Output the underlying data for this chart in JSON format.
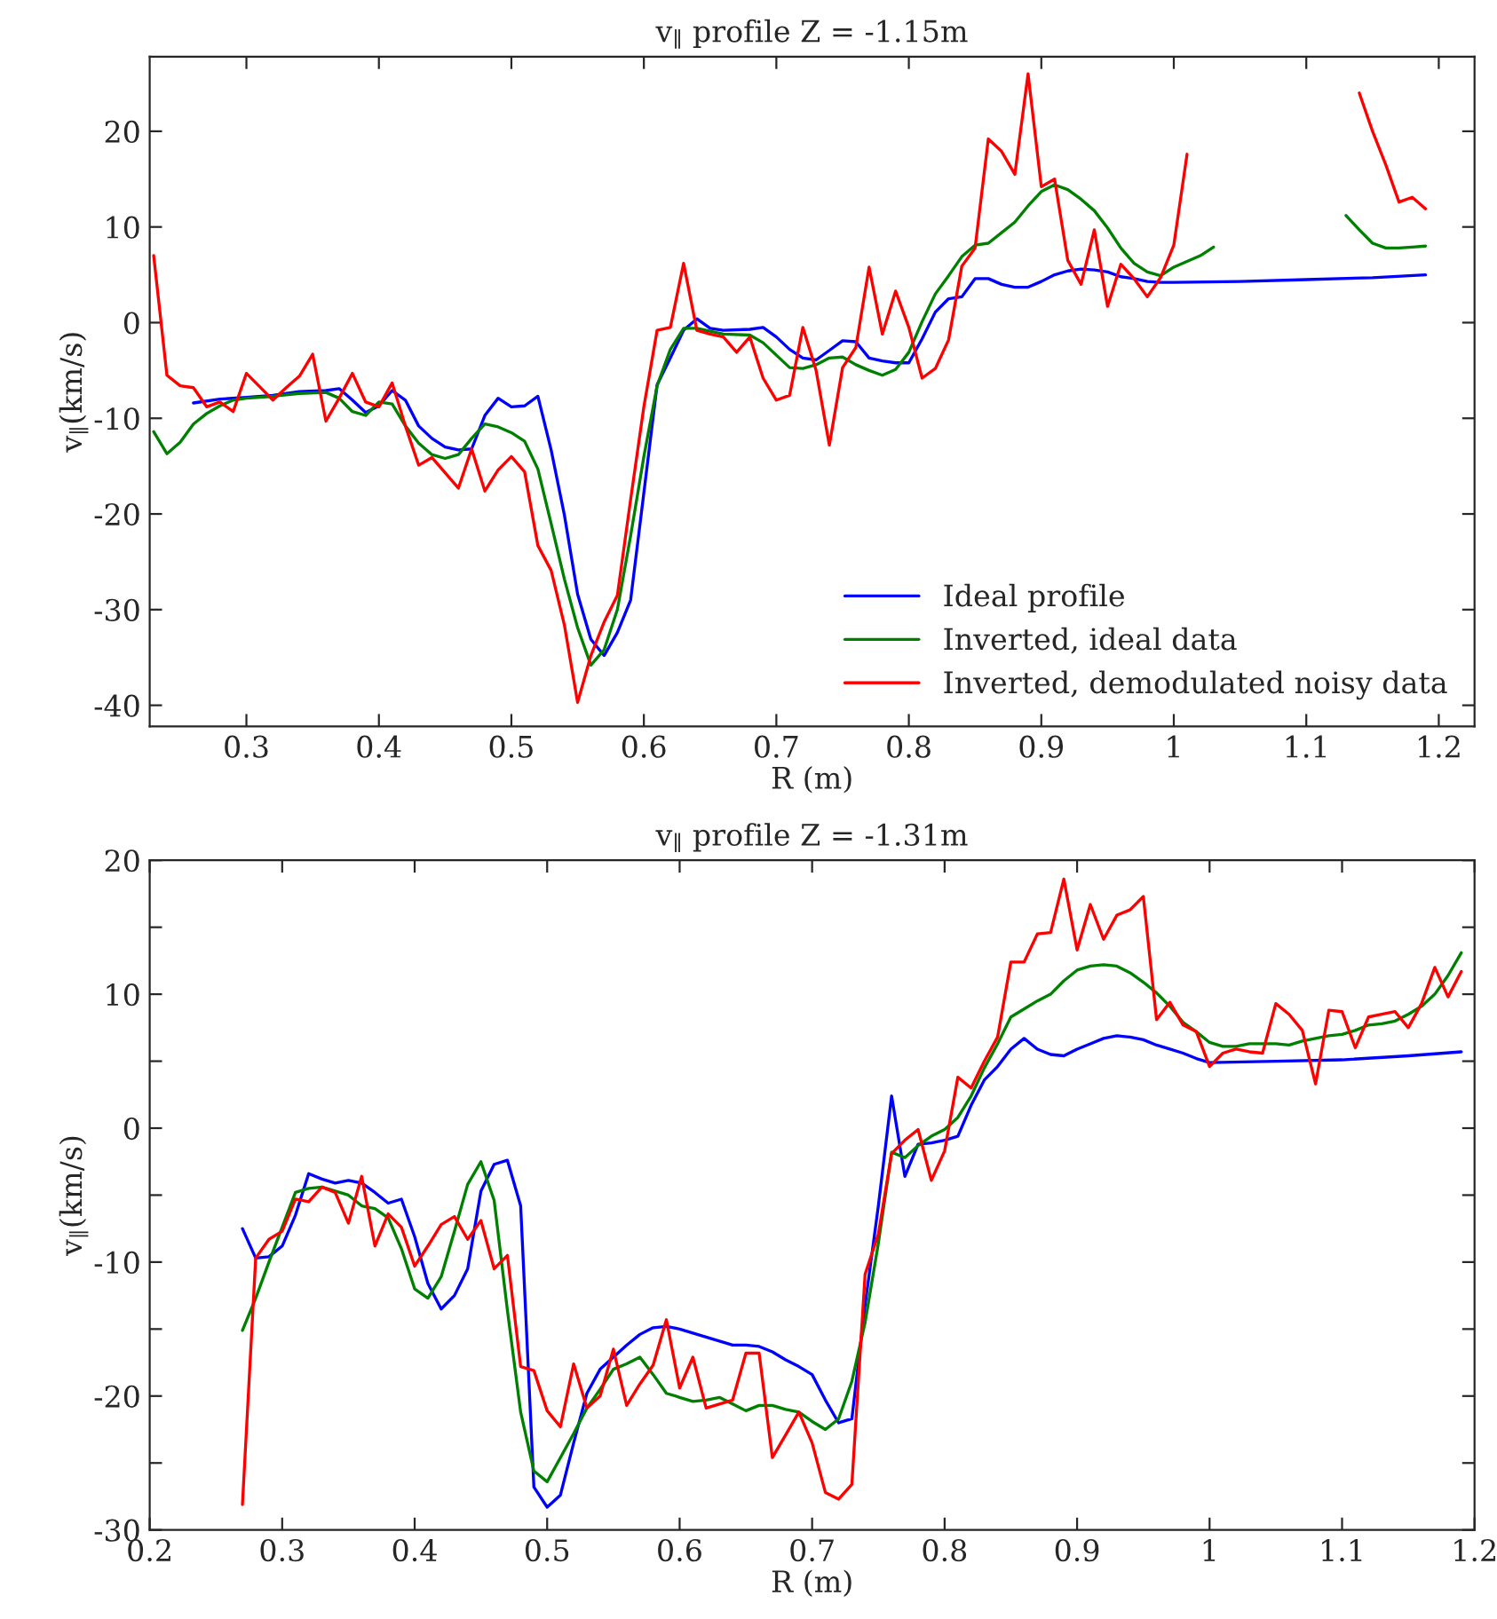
{
  "chart_data": [
    {
      "type": "line",
      "title": "v$_{∥}$ profile Z = -1.15m",
      "xlabel": "R (m)",
      "ylabel": "v$_{∥}$(km/s)",
      "xlim": [
        0.227,
        1.227
      ],
      "xticks": [
        0.3,
        0.4,
        0.5,
        0.6,
        0.7,
        0.8,
        0.9,
        1,
        1.1,
        1.2
      ],
      "ylim": [
        -42.2,
        27.8
      ],
      "yticks": [
        -40,
        -30,
        -20,
        -10,
        0,
        10,
        20
      ],
      "grid": false,
      "legend": "bottom right",
      "series": [
        {
          "name": "Ideal profile",
          "color": "#0000ff",
          "x": [
            0.26,
            0.28,
            0.3,
            0.32,
            0.34,
            0.36,
            0.37,
            0.38,
            0.39,
            0.4,
            0.41,
            0.42,
            0.43,
            0.44,
            0.45,
            0.46,
            0.47,
            0.48,
            0.49,
            0.5,
            0.51,
            0.52,
            0.53,
            0.54,
            0.55,
            0.56,
            0.57,
            0.58,
            0.59,
            0.6,
            0.61,
            0.62,
            0.63,
            0.64,
            0.65,
            0.66,
            0.68,
            0.69,
            0.7,
            0.71,
            0.72,
            0.73,
            0.74,
            0.75,
            0.76,
            0.77,
            0.78,
            0.79,
            0.8,
            0.81,
            0.82,
            0.83,
            0.84,
            0.85,
            0.86,
            0.87,
            0.88,
            0.89,
            0.9,
            0.91,
            0.92,
            0.93,
            0.94,
            0.95,
            0.96,
            0.97,
            0.98,
            0.99,
            1.0,
            1.05,
            1.1,
            1.15,
            1.19
          ],
          "values": [
            -8.4,
            -8.0,
            -7.8,
            -7.6,
            -7.2,
            -7.1,
            -6.9,
            -8.1,
            -9.4,
            -8.7,
            -7.1,
            -8.1,
            -10.8,
            -12.1,
            -13.0,
            -13.3,
            -13.2,
            -9.7,
            -7.9,
            -8.8,
            -8.7,
            -7.7,
            -13.3,
            -20.1,
            -28.4,
            -33.1,
            -34.8,
            -32.4,
            -29.0,
            -17.8,
            -6.5,
            -3.7,
            -0.8,
            0.4,
            -0.6,
            -0.8,
            -0.7,
            -0.5,
            -1.5,
            -2.8,
            -3.7,
            -3.9,
            -2.9,
            -1.9,
            -2.0,
            -3.7,
            -4.0,
            -4.2,
            -4.2,
            -1.7,
            1.1,
            2.5,
            2.7,
            4.6,
            4.6,
            4.0,
            3.7,
            3.7,
            4.3,
            5.0,
            5.4,
            5.6,
            5.5,
            5.3,
            4.8,
            4.6,
            4.3,
            4.2,
            4.2,
            4.3,
            4.5,
            4.7,
            5.0
          ]
        },
        {
          "name": "Inverted, ideal data",
          "color": "#008000",
          "x": [
            0.23,
            0.24,
            0.25,
            0.26,
            0.27,
            0.28,
            0.29,
            0.3,
            0.32,
            0.34,
            0.36,
            0.37,
            0.38,
            0.39,
            0.4,
            0.41,
            0.42,
            0.43,
            0.44,
            0.45,
            0.46,
            0.47,
            0.48,
            0.49,
            0.5,
            0.51,
            0.52,
            0.53,
            0.54,
            0.55,
            0.56,
            0.57,
            0.58,
            0.59,
            0.6,
            0.61,
            0.62,
            0.63,
            0.64,
            0.66,
            0.68,
            0.69,
            0.7,
            0.71,
            0.72,
            0.73,
            0.74,
            0.75,
            0.76,
            0.77,
            0.78,
            0.79,
            0.8,
            0.81,
            0.82,
            0.83,
            0.84,
            0.85,
            0.86,
            0.87,
            0.88,
            0.89,
            0.9,
            0.91,
            0.92,
            0.93,
            0.94,
            0.95,
            0.96,
            0.97,
            0.98,
            0.99,
            1.0,
            1.01,
            1.02,
            1.03,
            1.08,
            1.13,
            1.14,
            1.15,
            1.16,
            1.17,
            1.18,
            1.19
          ],
          "values": [
            -11.4,
            -13.7,
            -12.5,
            -10.6,
            -9.5,
            -8.7,
            -8.1,
            -7.9,
            -7.7,
            -7.4,
            -7.3,
            -7.9,
            -9.3,
            -9.7,
            -8.3,
            -8.5,
            -10.8,
            -12.6,
            -13.8,
            -14.2,
            -13.8,
            -12.1,
            -10.6,
            -10.9,
            -11.5,
            -12.4,
            -15.3,
            -21.0,
            -26.8,
            -31.9,
            -35.8,
            -34.2,
            -30.0,
            -22.3,
            -14.0,
            -6.6,
            -2.8,
            -0.6,
            -0.6,
            -1.2,
            -1.3,
            -2.1,
            -3.4,
            -4.7,
            -4.8,
            -4.4,
            -3.7,
            -3.6,
            -4.4,
            -5.0,
            -5.5,
            -4.9,
            -3.1,
            0.1,
            3.0,
            4.9,
            6.9,
            8.1,
            8.3,
            9.4,
            10.5,
            12.2,
            13.7,
            14.4,
            13.9,
            12.9,
            11.7,
            9.9,
            7.8,
            6.2,
            5.3,
            4.9,
            5.8,
            6.4,
            7.0,
            7.9,
            null,
            11.2,
            9.7,
            8.3,
            7.8,
            7.8,
            7.9,
            8.0
          ]
        },
        {
          "name": "Inverted, demodulated noisy data",
          "color": "#ff0000",
          "x": [
            0.23,
            0.24,
            0.25,
            0.26,
            0.27,
            0.28,
            0.29,
            0.3,
            0.31,
            0.32,
            0.33,
            0.34,
            0.35,
            0.36,
            0.37,
            0.38,
            0.39,
            0.4,
            0.41,
            0.42,
            0.43,
            0.44,
            0.45,
            0.46,
            0.47,
            0.48,
            0.49,
            0.5,
            0.51,
            0.52,
            0.53,
            0.54,
            0.55,
            0.56,
            0.57,
            0.58,
            0.59,
            0.6,
            0.61,
            0.62,
            0.63,
            0.64,
            0.65,
            0.66,
            0.67,
            0.68,
            0.69,
            0.7,
            0.71,
            0.72,
            0.73,
            0.74,
            0.75,
            0.76,
            0.77,
            0.78,
            0.79,
            0.8,
            0.81,
            0.82,
            0.83,
            0.84,
            0.85,
            0.86,
            0.87,
            0.88,
            0.89,
            0.9,
            0.91,
            0.92,
            0.93,
            0.94,
            0.95,
            0.96,
            0.97,
            0.98,
            0.99,
            1.0,
            1.01,
            1.08,
            1.14,
            1.15,
            1.16,
            1.17,
            1.18,
            1.19
          ],
          "values": [
            7.0,
            -5.5,
            -6.6,
            -6.8,
            -8.8,
            -8.3,
            -9.3,
            -5.3,
            -6.7,
            -8.1,
            -6.8,
            -5.6,
            -3.3,
            -10.3,
            -7.9,
            -5.3,
            -8.3,
            -8.8,
            -6.3,
            -10.8,
            -14.9,
            -14.1,
            -15.7,
            -17.3,
            -13.2,
            -17.6,
            -15.4,
            -14.0,
            -15.6,
            -23.3,
            -25.9,
            -31.6,
            -39.7,
            -34.8,
            -31.3,
            -28.5,
            -18.5,
            -8.8,
            -0.8,
            -0.5,
            6.2,
            -0.8,
            -1.2,
            -1.5,
            -3.1,
            -1.5,
            -5.8,
            -8.1,
            -7.6,
            -0.5,
            -5.0,
            -12.8,
            -4.7,
            -2.6,
            5.8,
            -1.2,
            3.3,
            -0.5,
            -5.8,
            -4.8,
            -1.8,
            5.9,
            7.8,
            19.2,
            17.9,
            15.5,
            26.0,
            14.2,
            15.0,
            6.5,
            4.0,
            9.7,
            1.7,
            6.1,
            4.6,
            2.7,
            4.7,
            8.1,
            17.6,
            null,
            24.0,
            20.0,
            16.5,
            12.6,
            13.1,
            11.9
          ]
        }
      ]
    },
    {
      "type": "line",
      "title": "v$_{∥}$ profile Z = -1.31m",
      "xlabel": "R (m)",
      "ylabel": "v$_{∥}$(km/s)",
      "xlim": [
        0.2,
        1.2
      ],
      "xticks": [
        0.2,
        0.3,
        0.4,
        0.5,
        0.6,
        0.7,
        0.8,
        0.9,
        1,
        1.1,
        1.2
      ],
      "ylim": [
        -30,
        20
      ],
      "yticks": [
        -30,
        {
          "value": -25,
          "label": null
        },
        -20,
        {
          "value": -15,
          "label": null
        },
        -10,
        {
          "value": -5,
          "label": null
        },
        0,
        {
          "value": 5,
          "label": null
        },
        10,
        {
          "value": 15,
          "label": null
        },
        20
      ],
      "grid": false,
      "series": [
        {
          "color": "#0000ff",
          "x": [
            0.27,
            0.28,
            0.29,
            0.3,
            0.31,
            0.32,
            0.33,
            0.34,
            0.35,
            0.36,
            0.37,
            0.38,
            0.39,
            0.4,
            0.41,
            0.42,
            0.43,
            0.44,
            0.45,
            0.46,
            0.47,
            0.48,
            0.49,
            0.5,
            0.51,
            0.52,
            0.53,
            0.54,
            0.55,
            0.56,
            0.57,
            0.58,
            0.59,
            0.6,
            0.61,
            0.62,
            0.63,
            0.64,
            0.65,
            0.66,
            0.67,
            0.68,
            0.69,
            0.7,
            0.71,
            0.72,
            0.73,
            0.74,
            0.75,
            0.76,
            0.77,
            0.78,
            0.79,
            0.8,
            0.81,
            0.82,
            0.83,
            0.84,
            0.85,
            0.86,
            0.87,
            0.88,
            0.89,
            0.9,
            0.91,
            0.92,
            0.93,
            0.94,
            0.95,
            0.96,
            0.97,
            0.98,
            0.99,
            1.0,
            1.05,
            1.1,
            1.15,
            1.19
          ],
          "values": [
            -7.5,
            -9.7,
            -9.6,
            -8.8,
            -6.5,
            -3.4,
            -3.8,
            -4.1,
            -3.9,
            -4.1,
            -4.8,
            -5.6,
            -5.3,
            -8.1,
            -11.6,
            -13.5,
            -12.5,
            -10.5,
            -4.7,
            -2.7,
            -2.4,
            -5.8,
            -26.8,
            -28.3,
            -27.4,
            -23.5,
            -19.8,
            -18.0,
            -17.1,
            -16.2,
            -15.4,
            -14.9,
            -14.8,
            -15.0,
            -15.3,
            -15.6,
            -15.9,
            -16.2,
            -16.2,
            -16.3,
            -16.7,
            -17.3,
            -17.8,
            -18.4,
            -20.3,
            -22.0,
            -21.7,
            -13.2,
            -5.8,
            2.4,
            -3.6,
            -1.2,
            -1.1,
            -0.9,
            -0.6,
            1.7,
            3.6,
            4.6,
            5.9,
            6.7,
            5.9,
            5.5,
            5.4,
            5.9,
            6.3,
            6.7,
            6.9,
            6.8,
            6.6,
            6.2,
            5.9,
            5.6,
            5.2,
            4.9,
            5.0,
            5.1,
            5.4,
            5.7
          ]
        },
        {
          "color": "#008000",
          "x": [
            0.27,
            0.28,
            0.29,
            0.3,
            0.31,
            0.32,
            0.33,
            0.34,
            0.35,
            0.36,
            0.37,
            0.38,
            0.39,
            0.4,
            0.41,
            0.42,
            0.43,
            0.44,
            0.45,
            0.46,
            0.47,
            0.48,
            0.49,
            0.5,
            0.51,
            0.52,
            0.53,
            0.54,
            0.55,
            0.56,
            0.57,
            0.58,
            0.59,
            0.6,
            0.61,
            0.62,
            0.63,
            0.64,
            0.65,
            0.66,
            0.67,
            0.68,
            0.69,
            0.7,
            0.71,
            0.72,
            0.73,
            0.74,
            0.75,
            0.76,
            0.77,
            0.78,
            0.79,
            0.8,
            0.81,
            0.82,
            0.83,
            0.84,
            0.85,
            0.86,
            0.87,
            0.88,
            0.89,
            0.9,
            0.91,
            0.92,
            0.93,
            0.94,
            0.95,
            0.96,
            0.97,
            0.98,
            0.99,
            1.0,
            1.01,
            1.02,
            1.03,
            1.05,
            1.06,
            1.07,
            1.08,
            1.09,
            1.1,
            1.11,
            1.12,
            1.13,
            1.14,
            1.15,
            1.16,
            1.17,
            1.18,
            1.19
          ],
          "values": [
            -15.1,
            -12.7,
            -10.0,
            -7.4,
            -4.8,
            -4.5,
            -4.4,
            -4.7,
            -5.0,
            -5.8,
            -6.0,
            -6.7,
            -9.0,
            -12.0,
            -12.7,
            -11.1,
            -7.7,
            -4.2,
            -2.5,
            -5.4,
            -13.6,
            -21.2,
            -25.6,
            -26.4,
            -24.6,
            -22.8,
            -20.9,
            -19.5,
            -18.0,
            -17.6,
            -17.1,
            -18.4,
            -19.8,
            -20.1,
            -20.4,
            -20.3,
            -20.1,
            -20.6,
            -21.1,
            -20.7,
            -20.7,
            -21.0,
            -21.2,
            -21.9,
            -22.5,
            -21.7,
            -18.9,
            -14.5,
            -8.6,
            -1.8,
            -2.2,
            -1.3,
            -0.6,
            -0.1,
            0.8,
            2.4,
            4.5,
            6.3,
            8.3,
            8.9,
            9.5,
            10.0,
            11.0,
            11.8,
            12.1,
            12.2,
            12.1,
            11.6,
            10.9,
            10.1,
            9.1,
            7.9,
            7.2,
            6.4,
            6.1,
            6.1,
            6.3,
            6.3,
            6.2,
            6.5,
            6.7,
            6.9,
            7.0,
            7.3,
            7.7,
            7.8,
            8.0,
            8.5,
            9.1,
            10.0,
            11.4,
            13.1
          ]
        },
        {
          "color": "#ff0000",
          "x": [
            0.27,
            0.28,
            0.29,
            0.3,
            0.31,
            0.32,
            0.33,
            0.34,
            0.35,
            0.36,
            0.37,
            0.38,
            0.39,
            0.4,
            0.41,
            0.42,
            0.43,
            0.44,
            0.45,
            0.46,
            0.47,
            0.48,
            0.49,
            0.5,
            0.51,
            0.52,
            0.53,
            0.54,
            0.55,
            0.56,
            0.57,
            0.58,
            0.59,
            0.6,
            0.61,
            0.62,
            0.63,
            0.64,
            0.65,
            0.66,
            0.67,
            0.68,
            0.69,
            0.7,
            0.71,
            0.72,
            0.73,
            0.74,
            0.75,
            0.76,
            0.77,
            0.78,
            0.79,
            0.8,
            0.81,
            0.82,
            0.83,
            0.84,
            0.85,
            0.86,
            0.87,
            0.88,
            0.89,
            0.9,
            0.91,
            0.92,
            0.93,
            0.94,
            0.95,
            0.96,
            0.97,
            0.98,
            0.99,
            1.0,
            1.01,
            1.02,
            1.03,
            1.04,
            1.05,
            1.06,
            1.07,
            1.08,
            1.09,
            1.1,
            1.11,
            1.12,
            1.13,
            1.14,
            1.15,
            1.16,
            1.17,
            1.18,
            1.19
          ],
          "values": [
            -28.1,
            -9.7,
            -8.3,
            -7.7,
            -5.3,
            -5.5,
            -4.4,
            -4.8,
            -7.1,
            -3.6,
            -8.8,
            -6.4,
            -7.4,
            -10.3,
            -8.8,
            -7.2,
            -6.6,
            -8.3,
            -6.9,
            -10.5,
            -9.5,
            -17.8,
            -18.1,
            -21.1,
            -22.3,
            -17.6,
            -20.9,
            -20.0,
            -16.5,
            -20.7,
            -19.1,
            -17.7,
            -14.3,
            -19.4,
            -17.1,
            -20.9,
            -20.6,
            -20.3,
            -16.8,
            -16.8,
            -24.6,
            -22.9,
            -21.2,
            -23.5,
            -27.2,
            -27.7,
            -26.6,
            -10.9,
            -7.9,
            -1.9,
            -0.9,
            -0.1,
            -3.9,
            -1.7,
            3.8,
            3.0,
            5.0,
            6.8,
            12.4,
            12.4,
            14.5,
            14.6,
            18.6,
            13.3,
            16.7,
            14.1,
            15.9,
            16.3,
            17.3,
            8.1,
            9.4,
            7.7,
            7.2,
            4.6,
            5.6,
            5.9,
            5.7,
            5.6,
            9.3,
            8.5,
            7.3,
            3.3,
            8.8,
            8.7,
            6.0,
            8.3,
            8.5,
            8.7,
            7.5,
            9.3,
            12.0,
            9.8,
            11.7
          ]
        }
      ]
    }
  ]
}
